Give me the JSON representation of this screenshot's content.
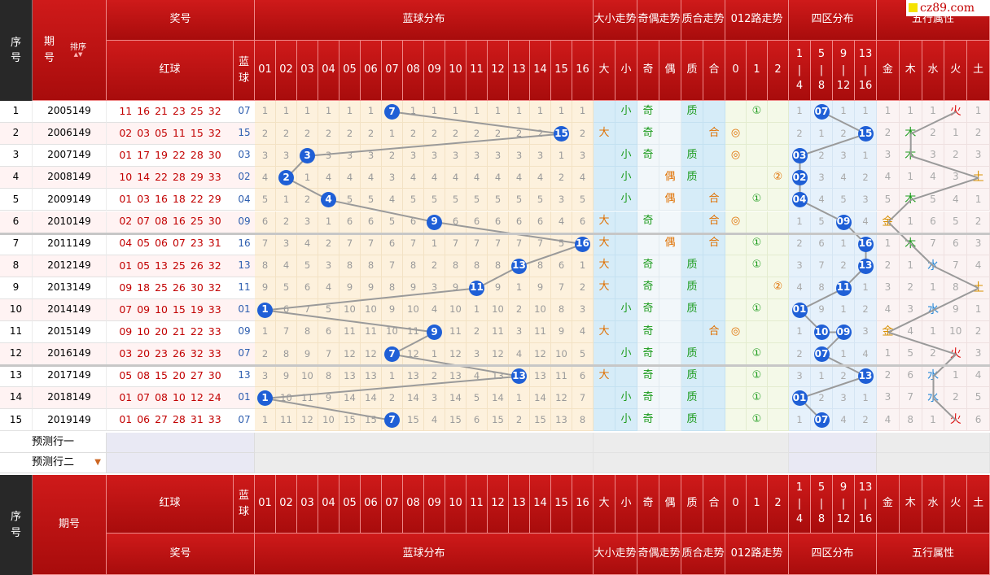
{
  "logo": {
    "text": "cz89.com"
  },
  "header": {
    "seq": "序号",
    "period": "期号",
    "sort_label": "排序",
    "prize": "奖号",
    "red_ball": "红球",
    "blue_ball": "蓝球",
    "blue_dist": "蓝球分布",
    "size_trend": "大小走势",
    "parity_trend": "奇偶走势",
    "prime_trend": "质合走势",
    "mod_trend": "012路走势",
    "zone_dist": "四区分布",
    "wuxing": "五行属性",
    "blue_cols": [
      "01",
      "02",
      "03",
      "04",
      "05",
      "06",
      "07",
      "08",
      "09",
      "10",
      "11",
      "12",
      "13",
      "14",
      "15",
      "16"
    ],
    "size_cols": [
      "大",
      "小"
    ],
    "parity_cols": [
      "奇",
      "偶"
    ],
    "prime_cols": [
      "质",
      "合"
    ],
    "mod_cols": [
      "0",
      "1",
      "2"
    ],
    "zone_cols": [
      "1|4",
      "5|8",
      "9|12",
      "13|16"
    ],
    "wuxing_cols": [
      "金",
      "木",
      "水",
      "火",
      "土"
    ]
  },
  "rows": [
    {
      "seq": "1",
      "period": "2005149",
      "red": "11 16 21 23 25 32",
      "blue": "07",
      "miss": [
        "1",
        "1",
        "1",
        "1",
        "1",
        "1",
        "7",
        "1",
        "1",
        "1",
        "1",
        "1",
        "1",
        "1",
        "1",
        "1"
      ],
      "size": [
        "",
        "小"
      ],
      "parity": [
        "奇",
        ""
      ],
      "prime": [
        "质",
        ""
      ],
      "mod": [
        "",
        "①",
        ""
      ],
      "zone": [
        "1",
        "07",
        "1",
        "1"
      ],
      "wx": [
        "1",
        "1",
        "1",
        "火",
        "1"
      ]
    },
    {
      "seq": "2",
      "period": "2006149",
      "red": "02 03 05 11 15 32",
      "blue": "15",
      "miss": [
        "2",
        "2",
        "2",
        "2",
        "2",
        "2",
        "1",
        "2",
        "2",
        "2",
        "2",
        "2",
        "2",
        "2",
        "15",
        "2"
      ],
      "size": [
        "大",
        ""
      ],
      "parity": [
        "奇",
        ""
      ],
      "prime": [
        "",
        "合"
      ],
      "mod": [
        "◎",
        "",
        ""
      ],
      "zone": [
        "2",
        "1",
        "2",
        "15"
      ],
      "wx": [
        "2",
        "木",
        "2",
        "1",
        "2"
      ]
    },
    {
      "seq": "3",
      "period": "2007149",
      "red": "01 17 19 22 28 30",
      "blue": "03",
      "miss": [
        "3",
        "3",
        "3",
        "3",
        "3",
        "3",
        "2",
        "3",
        "3",
        "3",
        "3",
        "3",
        "3",
        "3",
        "1",
        "3"
      ],
      "size": [
        "",
        "小"
      ],
      "parity": [
        "奇",
        ""
      ],
      "prime": [
        "质",
        ""
      ],
      "mod": [
        "◎",
        "",
        ""
      ],
      "zone": [
        "03",
        "2",
        "3",
        "1"
      ],
      "wx": [
        "3",
        "木",
        "3",
        "2",
        "3"
      ]
    },
    {
      "seq": "4",
      "period": "2008149",
      "red": "10 14 22 28 29 33",
      "blue": "02",
      "miss": [
        "4",
        "2",
        "1",
        "4",
        "4",
        "4",
        "3",
        "4",
        "4",
        "4",
        "4",
        "4",
        "4",
        "4",
        "2",
        "4"
      ],
      "size": [
        "",
        "小"
      ],
      "parity": [
        "",
        "偶"
      ],
      "prime": [
        "质",
        ""
      ],
      "mod": [
        "",
        "",
        "②"
      ],
      "zone": [
        "02",
        "3",
        "4",
        "2"
      ],
      "wx": [
        "4",
        "1",
        "4",
        "3",
        "土"
      ]
    },
    {
      "seq": "5",
      "period": "2009149",
      "red": "01 03 16 18 22 29",
      "blue": "04",
      "miss": [
        "5",
        "1",
        "2",
        "4",
        "5",
        "5",
        "4",
        "5",
        "5",
        "5",
        "5",
        "5",
        "5",
        "5",
        "3",
        "5"
      ],
      "size": [
        "",
        "小"
      ],
      "parity": [
        "",
        "偶"
      ],
      "prime": [
        "",
        "合"
      ],
      "mod": [
        "",
        "①",
        ""
      ],
      "zone": [
        "04",
        "4",
        "5",
        "3"
      ],
      "wx": [
        "5",
        "木",
        "5",
        "4",
        "1"
      ]
    },
    {
      "seq": "6",
      "period": "2010149",
      "red": "02 07 08 16 25 30",
      "blue": "09",
      "miss": [
        "6",
        "2",
        "3",
        "1",
        "6",
        "6",
        "5",
        "6",
        "9",
        "6",
        "6",
        "6",
        "6",
        "6",
        "4",
        "6"
      ],
      "size": [
        "大",
        ""
      ],
      "parity": [
        "奇",
        ""
      ],
      "prime": [
        "",
        "合"
      ],
      "mod": [
        "◎",
        "",
        ""
      ],
      "zone": [
        "1",
        "5",
        "09",
        "4"
      ],
      "wx": [
        "金",
        "1",
        "6",
        "5",
        "2"
      ]
    },
    {
      "seq": "7",
      "period": "2011149",
      "red": "04 05 06 07 23 31",
      "blue": "16",
      "miss": [
        "7",
        "3",
        "4",
        "2",
        "7",
        "7",
        "6",
        "7",
        "1",
        "7",
        "7",
        "7",
        "7",
        "7",
        "5",
        "16"
      ],
      "size": [
        "大",
        ""
      ],
      "parity": [
        "",
        "偶"
      ],
      "prime": [
        "",
        "合"
      ],
      "mod": [
        "",
        "①",
        ""
      ],
      "zone": [
        "2",
        "6",
        "1",
        "16"
      ],
      "wx": [
        "1",
        "木",
        "7",
        "6",
        "3"
      ]
    },
    {
      "seq": "8",
      "period": "2012149",
      "red": "01 05 13 25 26 32",
      "blue": "13",
      "miss": [
        "8",
        "4",
        "5",
        "3",
        "8",
        "8",
        "7",
        "8",
        "2",
        "8",
        "8",
        "8",
        "13",
        "8",
        "6",
        "1"
      ],
      "size": [
        "大",
        ""
      ],
      "parity": [
        "奇",
        ""
      ],
      "prime": [
        "质",
        ""
      ],
      "mod": [
        "",
        "①",
        ""
      ],
      "zone": [
        "3",
        "7",
        "2",
        "13"
      ],
      "wx": [
        "2",
        "1",
        "水",
        "7",
        "4"
      ]
    },
    {
      "seq": "9",
      "period": "2013149",
      "red": "09 18 25 26 30 32",
      "blue": "11",
      "miss": [
        "9",
        "5",
        "6",
        "4",
        "9",
        "9",
        "8",
        "9",
        "3",
        "9",
        "11",
        "9",
        "1",
        "9",
        "7",
        "2"
      ],
      "size": [
        "大",
        ""
      ],
      "parity": [
        "奇",
        ""
      ],
      "prime": [
        "质",
        ""
      ],
      "mod": [
        "",
        "",
        "②"
      ],
      "zone": [
        "4",
        "8",
        "11",
        "1"
      ],
      "wx": [
        "3",
        "2",
        "1",
        "8",
        "土"
      ]
    },
    {
      "seq": "10",
      "period": "2014149",
      "red": "07 09 10 15 19 33",
      "blue": "01",
      "miss": [
        "1",
        "6",
        "7",
        "5",
        "10",
        "10",
        "9",
        "10",
        "4",
        "10",
        "1",
        "10",
        "2",
        "10",
        "8",
        "3"
      ],
      "size": [
        "",
        "小"
      ],
      "parity": [
        "奇",
        ""
      ],
      "prime": [
        "质",
        ""
      ],
      "mod": [
        "",
        "①",
        ""
      ],
      "zone": [
        "01",
        "9",
        "1",
        "2"
      ],
      "wx": [
        "4",
        "3",
        "水",
        "9",
        "1"
      ]
    },
    {
      "seq": "11",
      "period": "2015149",
      "red": "09 10 20 21 22 33",
      "blue": "09",
      "miss": [
        "1",
        "7",
        "8",
        "6",
        "11",
        "11",
        "10",
        "11",
        "9",
        "11",
        "2",
        "11",
        "3",
        "11",
        "9",
        "4"
      ],
      "size": [
        "大",
        ""
      ],
      "parity": [
        "奇",
        ""
      ],
      "prime": [
        "",
        "合"
      ],
      "mod": [
        "◎",
        "",
        ""
      ],
      "zone": [
        "1",
        "10",
        "09",
        "3"
      ],
      "wx": [
        "金",
        "4",
        "1",
        "10",
        "2"
      ]
    },
    {
      "seq": "12",
      "period": "2016149",
      "red": "03 20 23 26 32 33",
      "blue": "07",
      "miss": [
        "2",
        "8",
        "9",
        "7",
        "12",
        "12",
        "7",
        "12",
        "1",
        "12",
        "3",
        "12",
        "4",
        "12",
        "10",
        "5"
      ],
      "size": [
        "",
        "小"
      ],
      "parity": [
        "奇",
        ""
      ],
      "prime": [
        "质",
        ""
      ],
      "mod": [
        "",
        "①",
        ""
      ],
      "zone": [
        "2",
        "07",
        "1",
        "4"
      ],
      "wx": [
        "1",
        "5",
        "2",
        "火",
        "3"
      ]
    },
    {
      "seq": "13",
      "period": "2017149",
      "red": "05 08 15 20 27 30",
      "blue": "13",
      "miss": [
        "3",
        "9",
        "10",
        "8",
        "13",
        "13",
        "1",
        "13",
        "2",
        "13",
        "4",
        "13",
        "13",
        "13",
        "11",
        "6"
      ],
      "size": [
        "大",
        ""
      ],
      "parity": [
        "奇",
        ""
      ],
      "prime": [
        "质",
        ""
      ],
      "mod": [
        "",
        "①",
        ""
      ],
      "zone": [
        "3",
        "1",
        "2",
        "13"
      ],
      "wx": [
        "2",
        "6",
        "水",
        "1",
        "4"
      ]
    },
    {
      "seq": "14",
      "period": "2018149",
      "red": "01 07 08 10 12 24",
      "blue": "01",
      "miss": [
        "1",
        "10",
        "11",
        "9",
        "14",
        "14",
        "2",
        "14",
        "3",
        "14",
        "5",
        "14",
        "1",
        "14",
        "12",
        "7"
      ],
      "size": [
        "",
        "小"
      ],
      "parity": [
        "奇",
        ""
      ],
      "prime": [
        "质",
        ""
      ],
      "mod": [
        "",
        "①",
        ""
      ],
      "zone": [
        "01",
        "2",
        "3",
        "1"
      ],
      "wx": [
        "3",
        "7",
        "水",
        "2",
        "5"
      ]
    },
    {
      "seq": "15",
      "period": "2019149",
      "red": "01 06 27 28 31 33",
      "blue": "07",
      "miss": [
        "1",
        "11",
        "12",
        "10",
        "15",
        "15",
        "7",
        "15",
        "4",
        "15",
        "6",
        "15",
        "2",
        "15",
        "13",
        "8"
      ],
      "size": [
        "",
        "小"
      ],
      "parity": [
        "奇",
        ""
      ],
      "prime": [
        "质",
        ""
      ],
      "mod": [
        "",
        "①",
        ""
      ],
      "zone": [
        "1",
        "07",
        "4",
        "2"
      ],
      "wx": [
        "4",
        "8",
        "1",
        "火",
        "6"
      ]
    }
  ],
  "predict": {
    "row1": "预测行一",
    "row2": "预测行二"
  },
  "colors": {
    "header_red": "#c41414",
    "ball_blue": "#1f5fd6",
    "miss_bg": "#fdf1dd",
    "zone_bg": "#e6f1fb"
  }
}
